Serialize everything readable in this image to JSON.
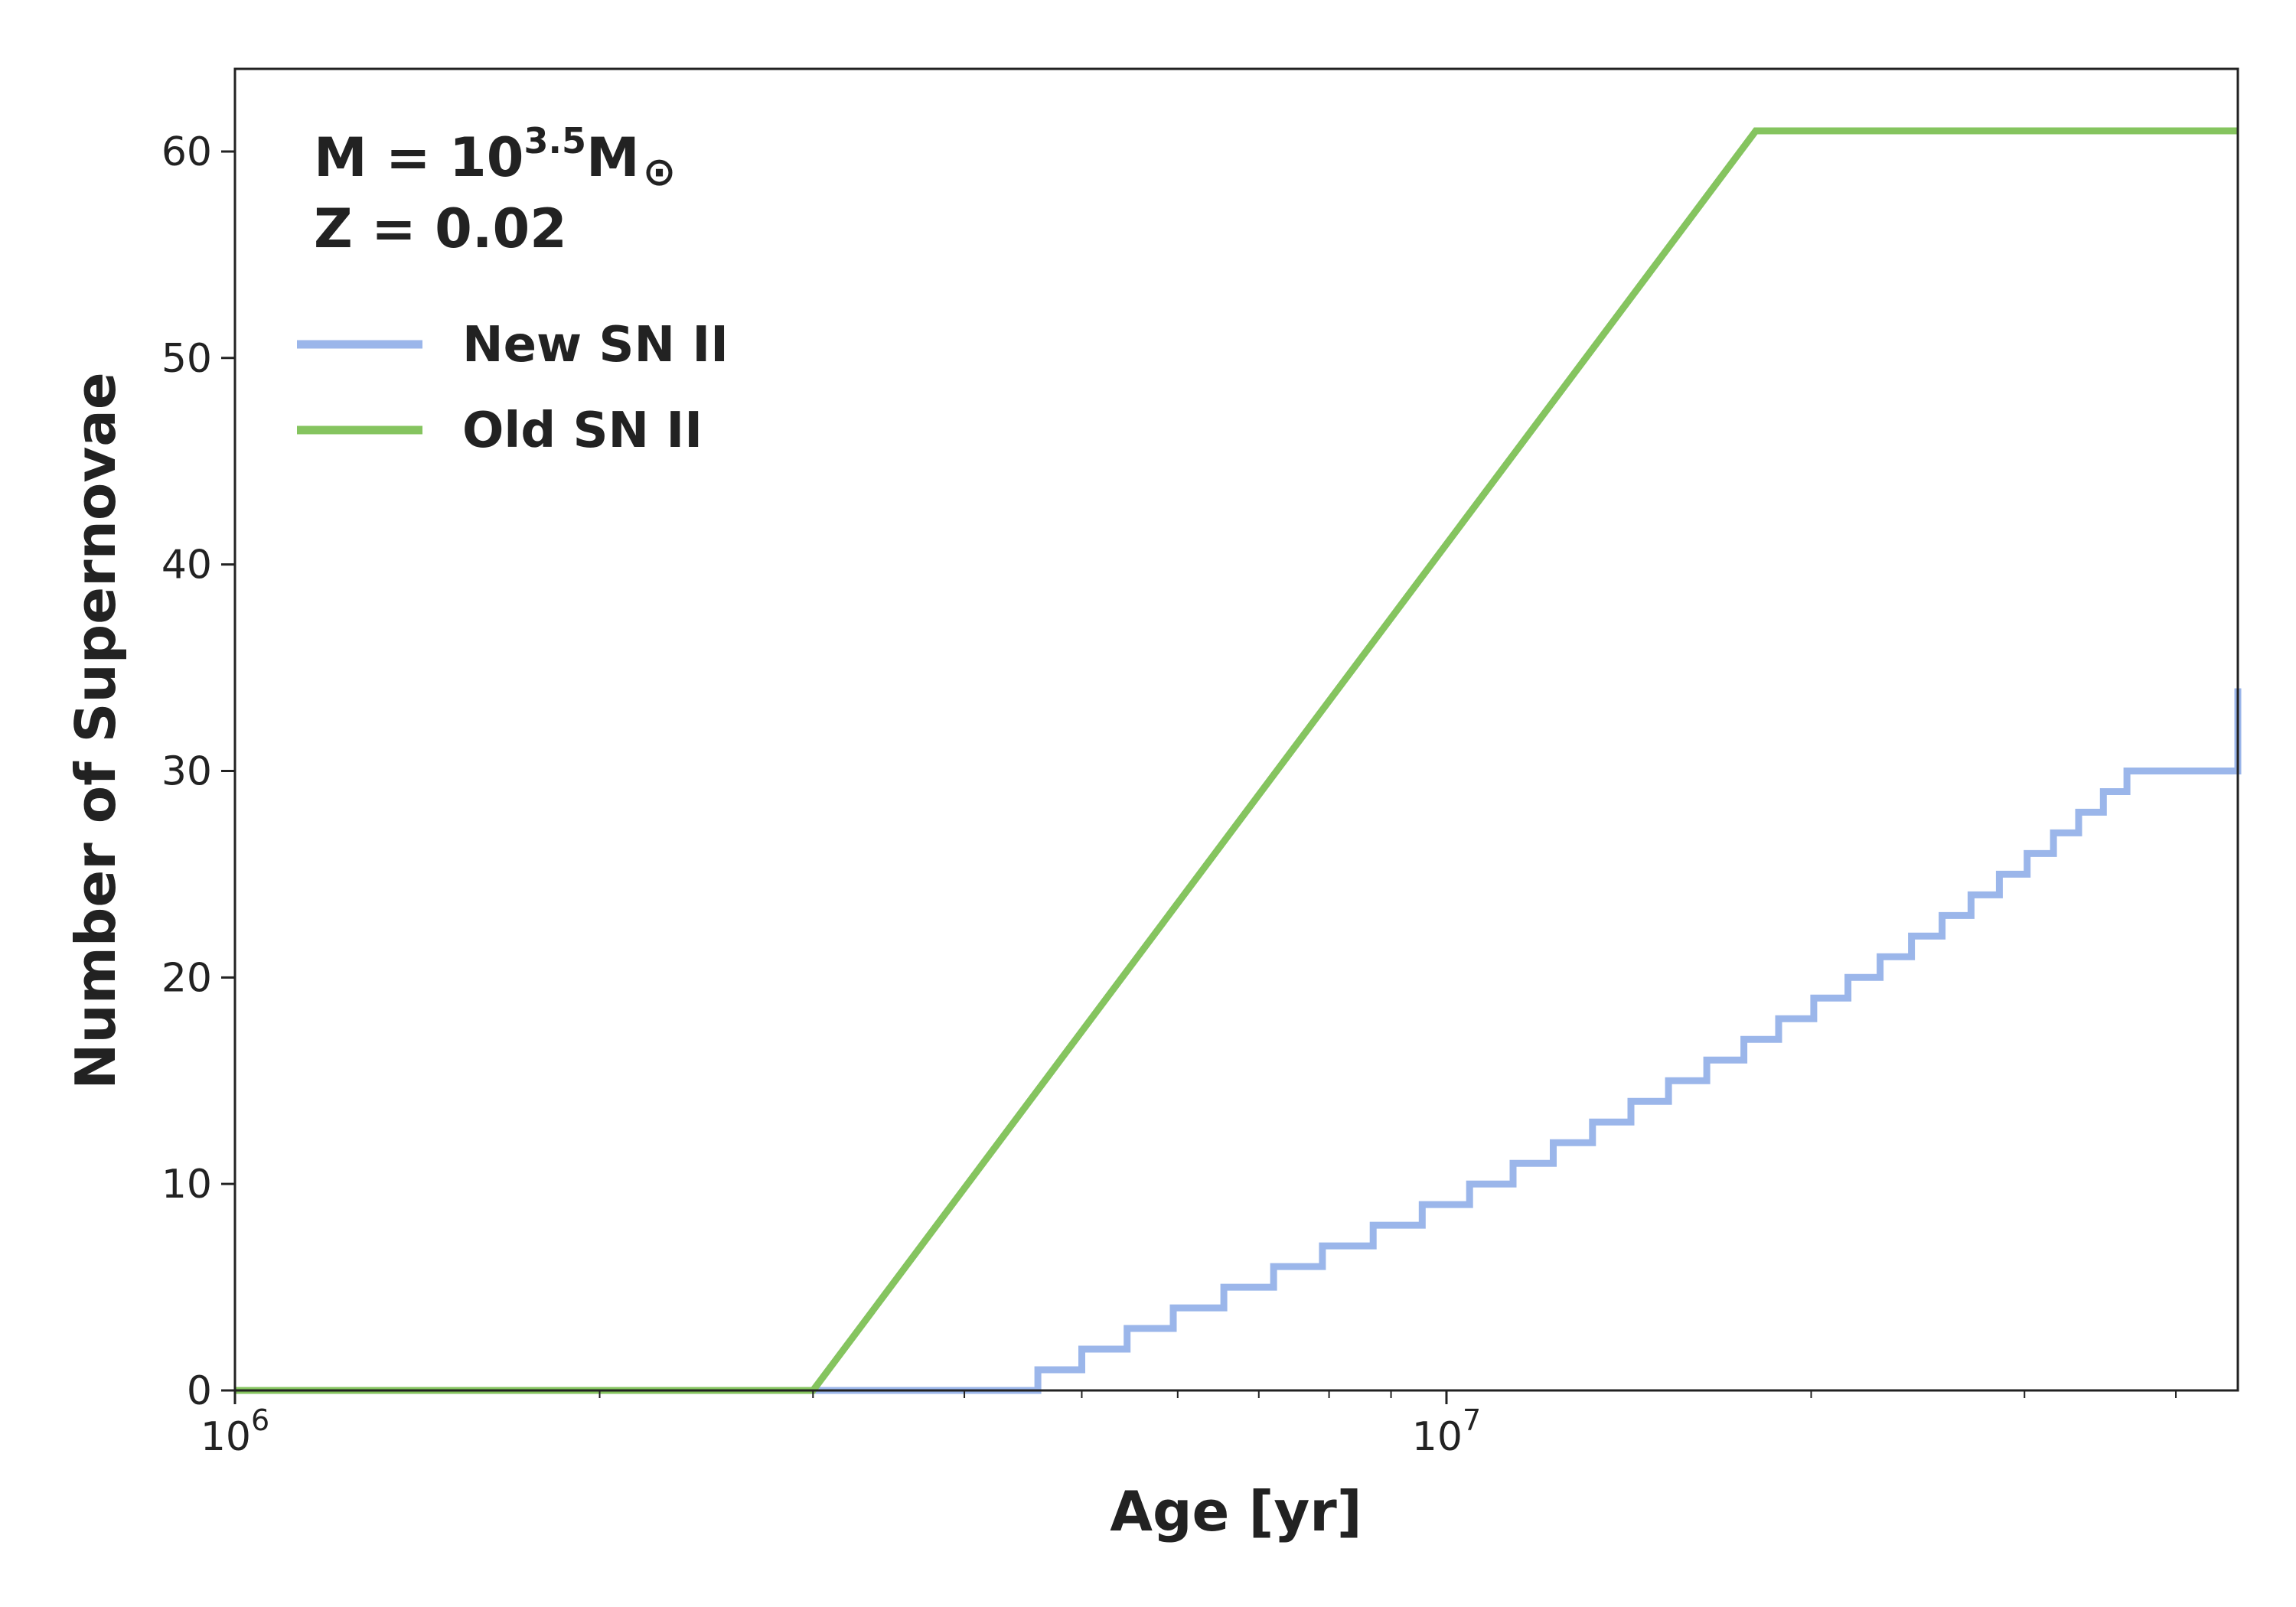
{
  "chart_data": {
    "type": "line",
    "xlabel": "Age [yr]",
    "ylabel": "Number of Supernovae",
    "x_scale": "log",
    "xlim": [
      1000000,
      45000000
    ],
    "ylim": [
      0,
      64
    ],
    "grid": false,
    "legend_position": "top-left",
    "x_ticks": [
      {
        "value": 1000000,
        "base": "10",
        "exp": "6"
      },
      {
        "value": 10000000,
        "base": "10",
        "exp": "7"
      }
    ],
    "y_ticks": [
      {
        "value": 0,
        "label": "0"
      },
      {
        "value": 10,
        "label": "10"
      },
      {
        "value": 20,
        "label": "20"
      },
      {
        "value": 30,
        "label": "30"
      },
      {
        "value": 40,
        "label": "40"
      },
      {
        "value": 50,
        "label": "50"
      },
      {
        "value": 60,
        "label": "60"
      }
    ],
    "annotation": {
      "mass_prefix": "M = 10",
      "mass_exponent": "3.5",
      "mass_unit": "M",
      "sun_symbol": "⊙",
      "metallicity": "Z = 0.02"
    },
    "series": [
      {
        "name": "New SN II",
        "color": "#9bb6ea",
        "style": "step",
        "x": [
          1000000,
          4500000,
          4600000,
          5000000,
          5450000,
          5950000,
          6550000,
          7200000,
          7900000,
          8700000,
          9550000,
          10450000,
          11350000,
          12250000,
          13200000,
          14200000,
          15250000,
          16400000,
          17600000,
          18800000,
          20100000,
          21450000,
          22800000,
          24200000,
          25650000,
          27100000,
          28600000,
          30150000,
          31700000,
          33250000,
          34850000,
          36450000,
          45000000
        ],
        "y": [
          0,
          0,
          1,
          2,
          3,
          4,
          5,
          6,
          7,
          8,
          9,
          10,
          11,
          12,
          13,
          14,
          15,
          16,
          17,
          18,
          19,
          20,
          21,
          22,
          23,
          24,
          25,
          26,
          27,
          28,
          29,
          30,
          34
        ]
      },
      {
        "name": "Old SN II",
        "color": "#85c45f",
        "style": "line",
        "x": [
          1000000,
          3000000,
          18000000,
          45000000
        ],
        "y": [
          0,
          0,
          61,
          61
        ]
      }
    ]
  }
}
